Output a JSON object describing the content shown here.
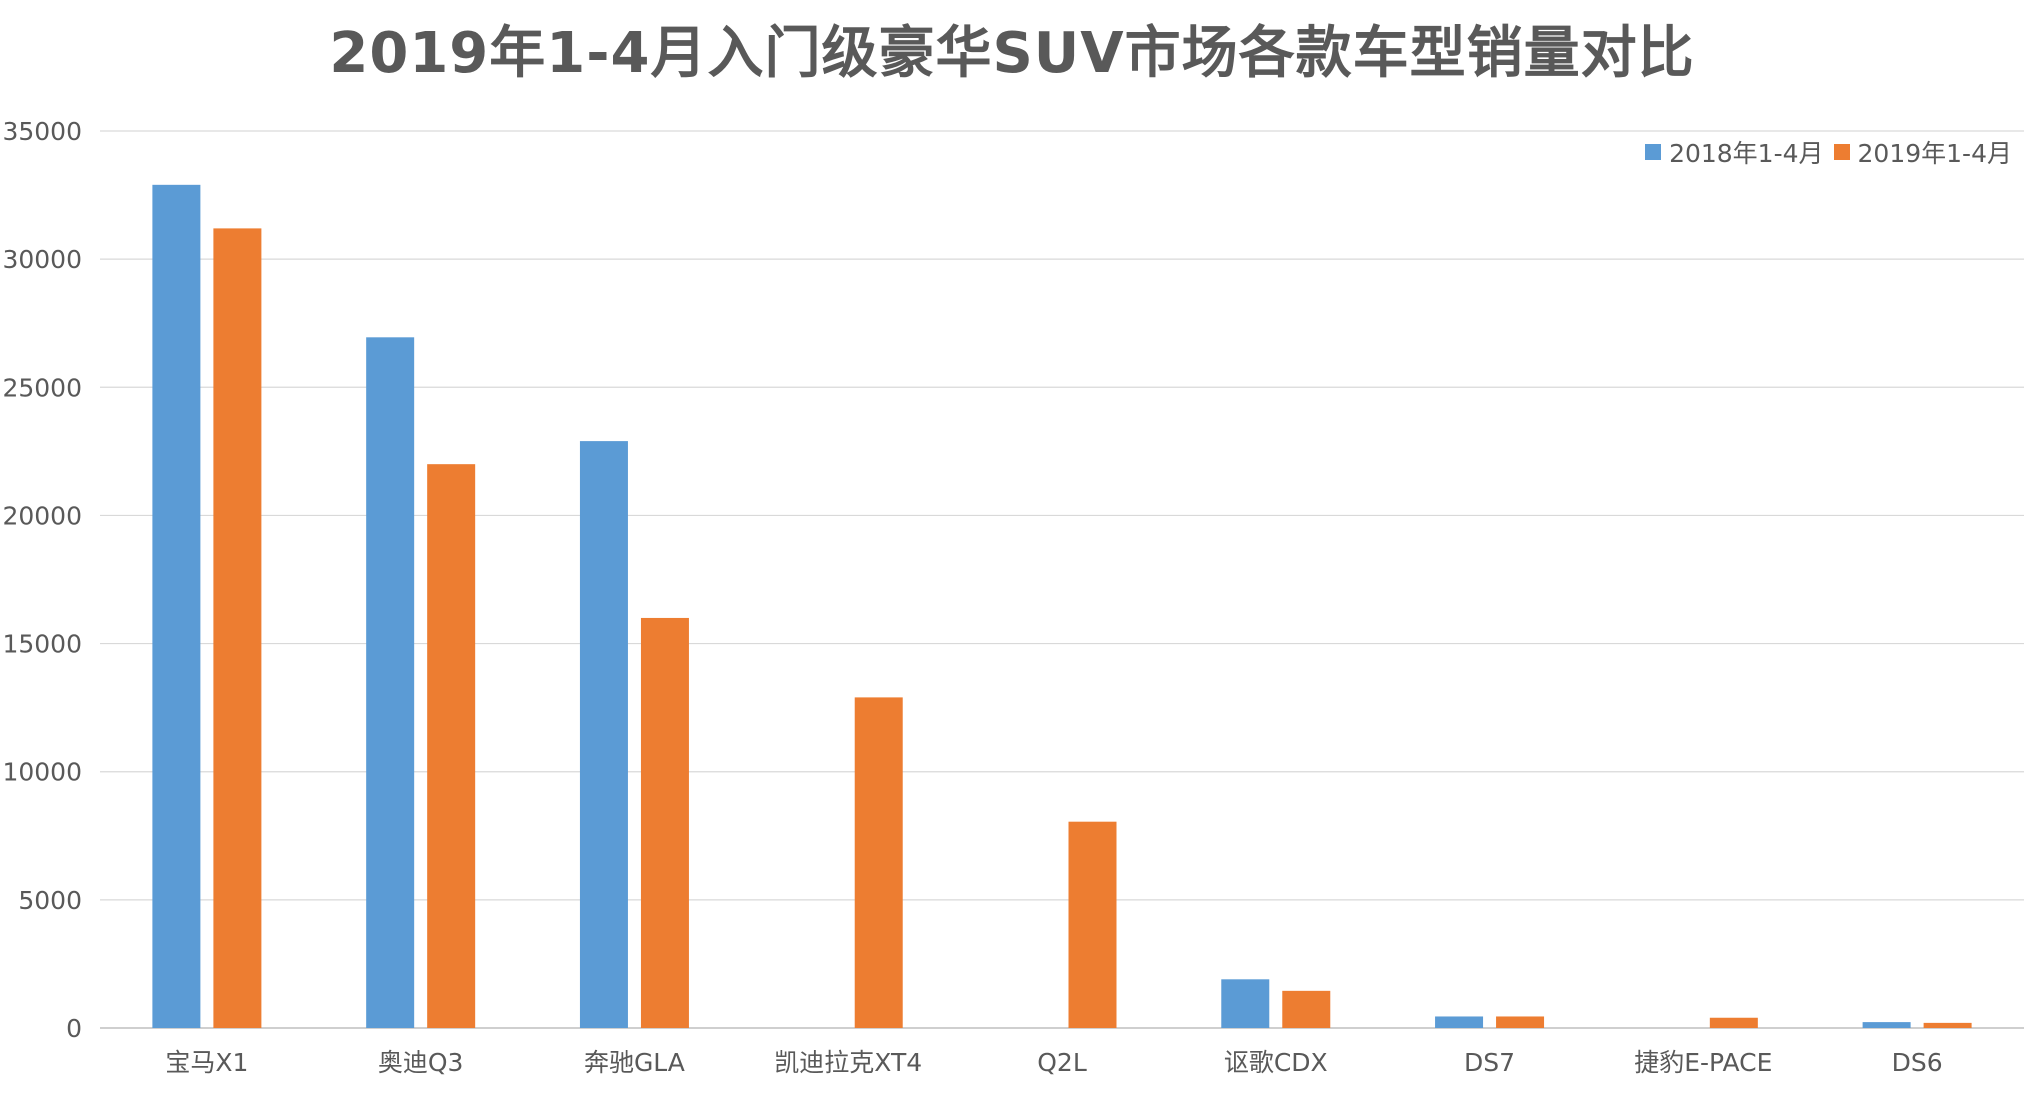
{
  "chart_data": {
    "type": "bar",
    "title": "2019年1-4月入门级豪华SUV市场各款车型销量对比",
    "categories": [
      "宝马X1",
      "奥迪Q3",
      "奔驰GLA",
      "凯迪拉克XT4",
      "Q2L",
      "讴歌CDX",
      "DS7",
      "捷豹E-PACE",
      "DS6"
    ],
    "series": [
      {
        "name": "2018年1-4月",
        "color": "#5B9BD5",
        "values": [
          32900,
          26950,
          22900,
          0,
          0,
          1900,
          450,
          0,
          230
        ]
      },
      {
        "name": "2019年1-4月",
        "color": "#ED7D31",
        "values": [
          31200,
          22000,
          16000,
          12900,
          8050,
          1450,
          450,
          400,
          200
        ]
      }
    ],
    "ylim": [
      0,
      35000
    ],
    "yticks": [
      0,
      5000,
      10000,
      15000,
      20000,
      25000,
      30000,
      35000
    ],
    "xlabel": "",
    "ylabel": "",
    "grid": true,
    "legend": "top-right"
  }
}
